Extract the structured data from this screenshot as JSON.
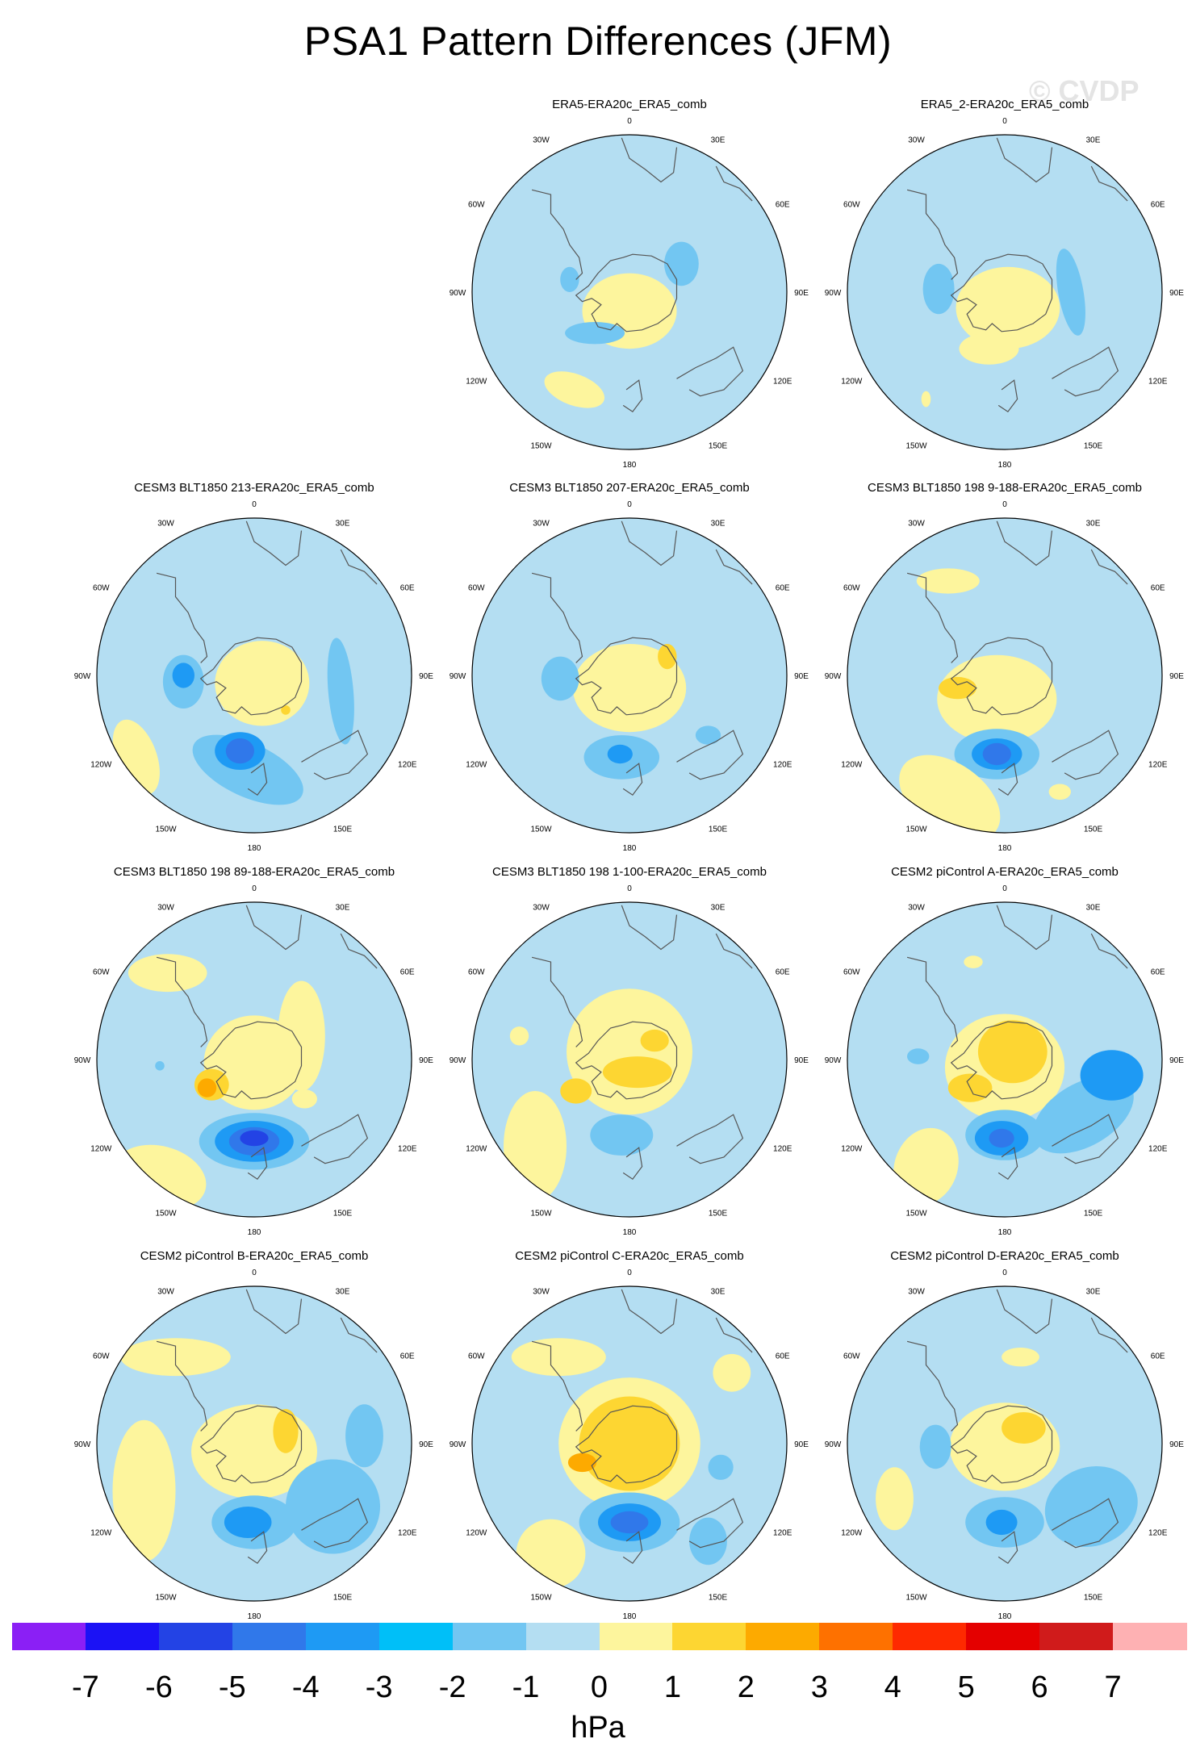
{
  "title": "PSA1 Pattern Differences (JFM)",
  "watermark": "© CVDP",
  "lon_labels": [
    "0",
    "30E",
    "60E",
    "90E",
    "120E",
    "150E",
    "180",
    "150W",
    "120W",
    "90W",
    "60W",
    "30W"
  ],
  "panels": [
    {
      "title": "ERA5-ERA20c_ERA5_comb",
      "row": 0,
      "col": 1,
      "blobs": [
        [
          "pos1",
          0,
          0.12,
          0.3,
          0.24,
          0
        ],
        [
          "neg1",
          0.33,
          -0.18,
          0.11,
          0.14,
          0
        ],
        [
          "neg1",
          -0.22,
          0.26,
          0.19,
          0.07,
          0
        ],
        [
          "neg1",
          -0.38,
          -0.08,
          0.06,
          0.08,
          0
        ],
        [
          "pos1",
          -0.35,
          0.62,
          0.2,
          0.1,
          20
        ]
      ]
    },
    {
      "title": "ERA5_2-ERA20c_ERA5_comb",
      "row": 0,
      "col": 2,
      "blobs": [
        [
          "pos1",
          0.02,
          0.1,
          0.33,
          0.26,
          0
        ],
        [
          "neg1",
          0.42,
          0,
          0.08,
          0.28,
          -10
        ],
        [
          "neg1",
          -0.42,
          -0.02,
          0.1,
          0.16,
          0
        ],
        [
          "pos1",
          -0.1,
          0.36,
          0.19,
          0.1,
          0
        ],
        [
          "pos1",
          -0.5,
          0.68,
          0.03,
          0.05,
          0
        ]
      ]
    },
    {
      "title": "CESM3 BLT1850 213-ERA20c_ERA5_comb",
      "row": 1,
      "col": 0,
      "blobs": [
        [
          "pos1",
          0.05,
          0.05,
          0.3,
          0.27,
          0
        ],
        [
          "neg1",
          -0.45,
          0.04,
          0.13,
          0.17,
          0
        ],
        [
          "neg2",
          -0.45,
          0,
          0.07,
          0.08,
          0
        ],
        [
          "neg1",
          -0.04,
          0.6,
          0.38,
          0.17,
          25
        ],
        [
          "neg2",
          -0.09,
          0.48,
          0.16,
          0.12,
          0
        ],
        [
          "neg3",
          -0.09,
          0.48,
          0.09,
          0.08,
          0
        ],
        [
          "neg1",
          0.55,
          0.1,
          0.08,
          0.34,
          -5
        ],
        [
          "pos1",
          -0.75,
          0.52,
          0.13,
          0.25,
          -20
        ],
        [
          "pos2",
          0.2,
          0.22,
          0.03,
          0.03,
          0
        ]
      ]
    },
    {
      "title": "CESM3 BLT1850 207-ERA20c_ERA5_comb",
      "row": 1,
      "col": 1,
      "blobs": [
        [
          "pos1",
          0,
          0.08,
          0.36,
          0.28,
          0
        ],
        [
          "pos2",
          0.24,
          -0.12,
          0.06,
          0.08,
          0
        ],
        [
          "neg1",
          -0.44,
          0.02,
          0.12,
          0.14,
          0
        ],
        [
          "neg1",
          -0.05,
          0.52,
          0.24,
          0.14,
          0
        ],
        [
          "neg2",
          -0.06,
          0.5,
          0.08,
          0.06,
          0
        ],
        [
          "neg1",
          0.5,
          0.38,
          0.08,
          0.06,
          0
        ]
      ]
    },
    {
      "title": "CESM3 BLT1850 198 9-188-ERA20c_ERA5_comb",
      "row": 1,
      "col": 2,
      "blobs": [
        [
          "pos1",
          -0.05,
          0.15,
          0.38,
          0.28,
          0
        ],
        [
          "pos2",
          -0.3,
          0.08,
          0.12,
          0.07,
          0
        ],
        [
          "neg1",
          -0.05,
          0.5,
          0.27,
          0.16,
          0
        ],
        [
          "neg2",
          -0.05,
          0.5,
          0.16,
          0.1,
          0
        ],
        [
          "neg3",
          -0.05,
          0.5,
          0.09,
          0.07,
          0
        ],
        [
          "pos1",
          -0.36,
          -0.6,
          0.2,
          0.08,
          0
        ],
        [
          "pos1",
          -0.35,
          0.78,
          0.36,
          0.22,
          35
        ],
        [
          "pos1",
          0.35,
          0.74,
          0.07,
          0.05,
          0
        ]
      ]
    },
    {
      "title": "CESM3 BLT1850 198 89-188-ERA20c_ERA5_comb",
      "row": 2,
      "col": 0,
      "blobs": [
        [
          "pos1",
          0,
          0.02,
          0.32,
          0.3,
          0
        ],
        [
          "pos2",
          -0.27,
          0.16,
          0.11,
          0.1,
          0
        ],
        [
          "pos3",
          -0.3,
          0.18,
          0.06,
          0.06,
          0
        ],
        [
          "neg1",
          0,
          0.52,
          0.35,
          0.18,
          0
        ],
        [
          "neg2",
          0,
          0.52,
          0.25,
          0.13,
          0
        ],
        [
          "neg3",
          0,
          0.52,
          0.16,
          0.09,
          0
        ],
        [
          "neg4",
          0,
          0.5,
          0.09,
          0.05,
          0
        ],
        [
          "pos1",
          -0.55,
          -0.55,
          0.25,
          0.12,
          0
        ],
        [
          "pos1",
          -0.6,
          0.75,
          0.3,
          0.2,
          15
        ],
        [
          "pos1",
          0.3,
          -0.15,
          0.15,
          0.35,
          0
        ],
        [
          "neg1",
          -0.6,
          0.04,
          0.03,
          0.03,
          0
        ],
        [
          "pos1",
          0.32,
          0.25,
          0.08,
          0.06,
          0
        ]
      ]
    },
    {
      "title": "CESM3 BLT1850 198 1-100-ERA20c_ERA5_comb",
      "row": 2,
      "col": 1,
      "blobs": [
        [
          "pos1",
          0,
          -0.05,
          0.4,
          0.4,
          0
        ],
        [
          "pos2",
          0.05,
          0.08,
          0.22,
          0.1,
          0
        ],
        [
          "pos2",
          -0.34,
          0.2,
          0.1,
          0.08,
          0
        ],
        [
          "pos2",
          0.16,
          -0.12,
          0.09,
          0.07,
          0
        ],
        [
          "pos1",
          -0.6,
          0.55,
          0.2,
          0.35,
          0
        ],
        [
          "neg1",
          -0.05,
          0.48,
          0.2,
          0.13,
          0
        ],
        [
          "pos1",
          -0.7,
          -0.15,
          0.06,
          0.06,
          0
        ]
      ]
    },
    {
      "title": "CESM2 piControl A-ERA20c_ERA5_comb",
      "row": 2,
      "col": 2,
      "blobs": [
        [
          "pos1",
          0,
          0.05,
          0.38,
          0.34,
          0
        ],
        [
          "pos2",
          0.05,
          -0.05,
          0.22,
          0.2,
          0
        ],
        [
          "pos2",
          -0.22,
          0.18,
          0.14,
          0.09,
          0
        ],
        [
          "neg1",
          0,
          0.48,
          0.25,
          0.16,
          0
        ],
        [
          "neg2",
          -0.02,
          0.5,
          0.17,
          0.11,
          0
        ],
        [
          "neg3",
          -0.02,
          0.5,
          0.08,
          0.06,
          0
        ],
        [
          "neg1",
          0.5,
          0.35,
          0.35,
          0.2,
          -30
        ],
        [
          "neg2",
          0.68,
          0.1,
          0.2,
          0.16,
          0
        ],
        [
          "pos1",
          -0.5,
          0.68,
          0.2,
          0.25,
          20
        ],
        [
          "neg1",
          -0.55,
          -0.02,
          0.07,
          0.05,
          0
        ],
        [
          "pos1",
          -0.2,
          -0.62,
          0.06,
          0.04,
          0
        ]
      ]
    },
    {
      "title": "CESM2 piControl B-ERA20c_ERA5_comb",
      "row": 3,
      "col": 0,
      "blobs": [
        [
          "pos1",
          0,
          0.05,
          0.4,
          0.3,
          0
        ],
        [
          "pos2",
          0.2,
          -0.08,
          0.08,
          0.14,
          0
        ],
        [
          "pos1",
          -0.5,
          -0.55,
          0.35,
          0.12,
          0
        ],
        [
          "pos1",
          -0.7,
          0.3,
          0.2,
          0.45,
          0
        ],
        [
          "neg1",
          0,
          0.5,
          0.27,
          0.17,
          0
        ],
        [
          "neg2",
          -0.04,
          0.5,
          0.15,
          0.1,
          0
        ],
        [
          "neg1",
          0.5,
          0.4,
          0.3,
          0.3,
          -25
        ],
        [
          "neg1",
          0.7,
          -0.05,
          0.12,
          0.2,
          0
        ]
      ]
    },
    {
      "title": "CESM2 piControl C-ERA20c_ERA5_comb",
      "row": 3,
      "col": 1,
      "blobs": [
        [
          "pos1",
          0,
          0,
          0.45,
          0.42,
          0
        ],
        [
          "pos2",
          0,
          0,
          0.32,
          0.3,
          0
        ],
        [
          "pos3",
          -0.3,
          0.12,
          0.09,
          0.06,
          0
        ],
        [
          "neg1",
          0,
          0.5,
          0.32,
          0.19,
          0
        ],
        [
          "neg2",
          0,
          0.5,
          0.2,
          0.12,
          0
        ],
        [
          "neg3",
          0,
          0.5,
          0.12,
          0.07,
          0
        ],
        [
          "neg1",
          0.5,
          0.62,
          0.12,
          0.15,
          0
        ],
        [
          "pos1",
          -0.5,
          0.7,
          0.22,
          0.22,
          0
        ],
        [
          "pos1",
          -0.45,
          -0.55,
          0.3,
          0.12,
          0
        ],
        [
          "pos1",
          0.65,
          -0.45,
          0.12,
          0.12,
          0
        ],
        [
          "neg1",
          0.58,
          0.15,
          0.08,
          0.08,
          0
        ]
      ]
    },
    {
      "title": "CESM2 piControl D-ERA20c_ERA5_comb",
      "row": 3,
      "col": 2,
      "blobs": [
        [
          "pos1",
          0,
          0.02,
          0.35,
          0.28,
          0
        ],
        [
          "pos2",
          0.12,
          -0.1,
          0.14,
          0.1,
          0
        ],
        [
          "neg1",
          -0.44,
          0.02,
          0.1,
          0.14,
          0
        ],
        [
          "neg1",
          0,
          0.5,
          0.25,
          0.16,
          0
        ],
        [
          "neg2",
          -0.02,
          0.5,
          0.1,
          0.08,
          0
        ],
        [
          "neg1",
          0.55,
          0.4,
          0.3,
          0.25,
          -20
        ],
        [
          "pos1",
          -0.7,
          0.35,
          0.12,
          0.2,
          0
        ],
        [
          "pos1",
          0.1,
          -0.55,
          0.12,
          0.06,
          0
        ]
      ]
    }
  ],
  "colorbar": {
    "colors": [
      "#8b1ff5",
      "#1b12f5",
      "#2343e5",
      "#3078ea",
      "#1e9af4",
      "#00bff8",
      "#72c6f2",
      "#b4def2",
      "#fdf59d",
      "#fdd632",
      "#fdaa00",
      "#fe7100",
      "#fe2a00",
      "#e40000",
      "#d01b1b",
      "#feb1b3"
    ],
    "labels": [
      "-7",
      "-6",
      "-5",
      "-4",
      "-3",
      "-2",
      "-1",
      "0",
      "1",
      "2",
      "3",
      "4",
      "5",
      "6",
      "7"
    ],
    "unit": "hPa"
  },
  "level_colors": {
    "neg4": "#2343e5",
    "neg3": "#3078ea",
    "neg2": "#1e9af4",
    "neg1": "#72c6f2",
    "pos1": "#fdf59d",
    "pos2": "#fdd632",
    "pos3": "#fdaa00"
  },
  "map_colors": {
    "ocean": "#b4def2",
    "coast": "#555555"
  }
}
